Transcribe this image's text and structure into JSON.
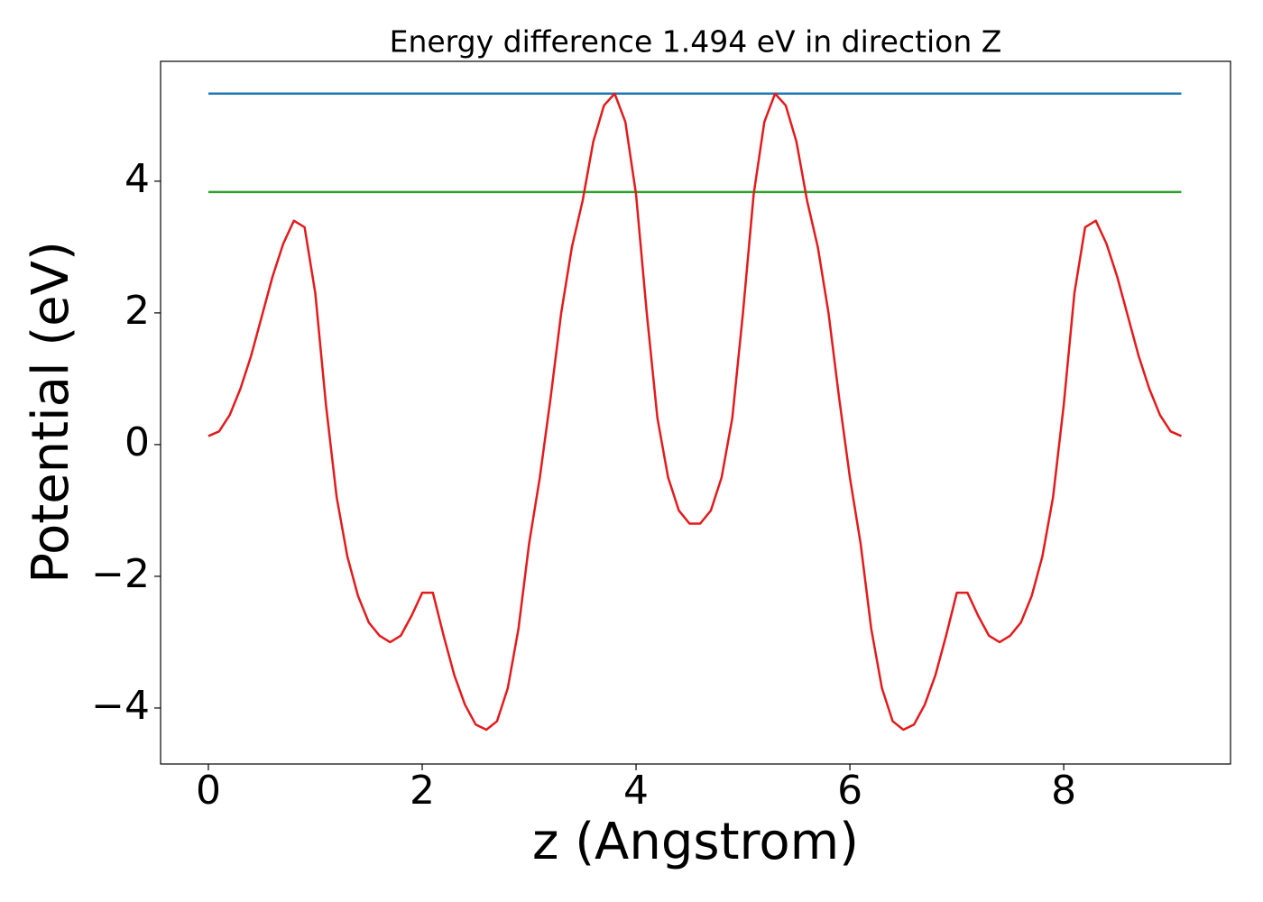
{
  "chart_data": {
    "type": "line",
    "title": "Energy difference 1.494 eV in direction Z",
    "x_label": "z (Angstrom)",
    "y_label": "Potential (eV)",
    "xlim": [
      -0.447,
      9.56
    ],
    "ylim": [
      -4.85,
      5.82
    ],
    "xticks": [
      0,
      2,
      4,
      6,
      8
    ],
    "yticks": [
      {
        "value": -4,
        "label": "−4"
      },
      {
        "value": -2,
        "label": "−2"
      },
      0,
      2,
      4
    ],
    "series": [
      {
        "color": "#1f77b4",
        "x": [
          0,
          9.1
        ],
        "values": [
          5.33,
          5.33
        ]
      },
      {
        "color": "#2ca02c",
        "x": [
          0,
          9.1
        ],
        "values": [
          3.836,
          3.836
        ]
      },
      {
        "color": "#e41a1c",
        "x": [
          0,
          0.1,
          0.2,
          0.3,
          0.4,
          0.5,
          0.6,
          0.7,
          0.8,
          0.9,
          1.0,
          1.1,
          1.2,
          1.3,
          1.4,
          1.5,
          1.6,
          1.7,
          1.8,
          1.9,
          2.0,
          2.1,
          2.2,
          2.3,
          2.4,
          2.5,
          2.6,
          2.7,
          2.8,
          2.9,
          3.0,
          3.1,
          3.2,
          3.3,
          3.4,
          3.5,
          3.6,
          3.7,
          3.8,
          3.9,
          4.0,
          4.1,
          4.2,
          4.3,
          4.4,
          4.5,
          4.6,
          4.7,
          4.8,
          4.9,
          5.0,
          5.1,
          5.2,
          5.3,
          5.4,
          5.5,
          5.6,
          5.7,
          5.8,
          5.9,
          6.0,
          6.1,
          6.2,
          6.3,
          6.4,
          6.5,
          6.6,
          6.7,
          6.8,
          6.9,
          7.0,
          7.1,
          7.2,
          7.3,
          7.4,
          7.5,
          7.6,
          7.7,
          7.8,
          7.9,
          8.0,
          8.1,
          8.2,
          8.3,
          8.4,
          8.5,
          8.6,
          8.7,
          8.8,
          8.9,
          9.0,
          9.1
        ],
        "values": [
          0.13,
          0.2,
          0.45,
          0.85,
          1.35,
          1.95,
          2.55,
          3.05,
          3.4,
          3.3,
          2.3,
          0.6,
          -0.8,
          -1.7,
          -2.3,
          -2.7,
          -2.9,
          -3.0,
          -2.9,
          -2.6,
          -2.25,
          -2.25,
          -2.9,
          -3.5,
          -3.95,
          -4.25,
          -4.33,
          -4.2,
          -3.7,
          -2.8,
          -1.5,
          -0.5,
          0.7,
          2.0,
          3.0,
          3.7,
          4.6,
          5.15,
          5.33,
          4.9,
          3.8,
          2.0,
          0.4,
          -0.5,
          -1.0,
          -1.2,
          -1.2,
          -1.0,
          -0.5,
          0.4,
          2.0,
          3.8,
          4.9,
          5.33,
          5.15,
          4.6,
          3.7,
          3.0,
          2.0,
          0.7,
          -0.5,
          -1.5,
          -2.8,
          -3.7,
          -4.2,
          -4.33,
          -4.25,
          -3.95,
          -3.5,
          -2.9,
          -2.25,
          -2.25,
          -2.6,
          -2.9,
          -3.0,
          -2.9,
          -2.7,
          -2.3,
          -1.7,
          -0.8,
          0.6,
          2.3,
          3.3,
          3.4,
          3.05,
          2.55,
          1.95,
          1.35,
          0.85,
          0.45,
          0.2,
          0.13
        ]
      }
    ]
  }
}
